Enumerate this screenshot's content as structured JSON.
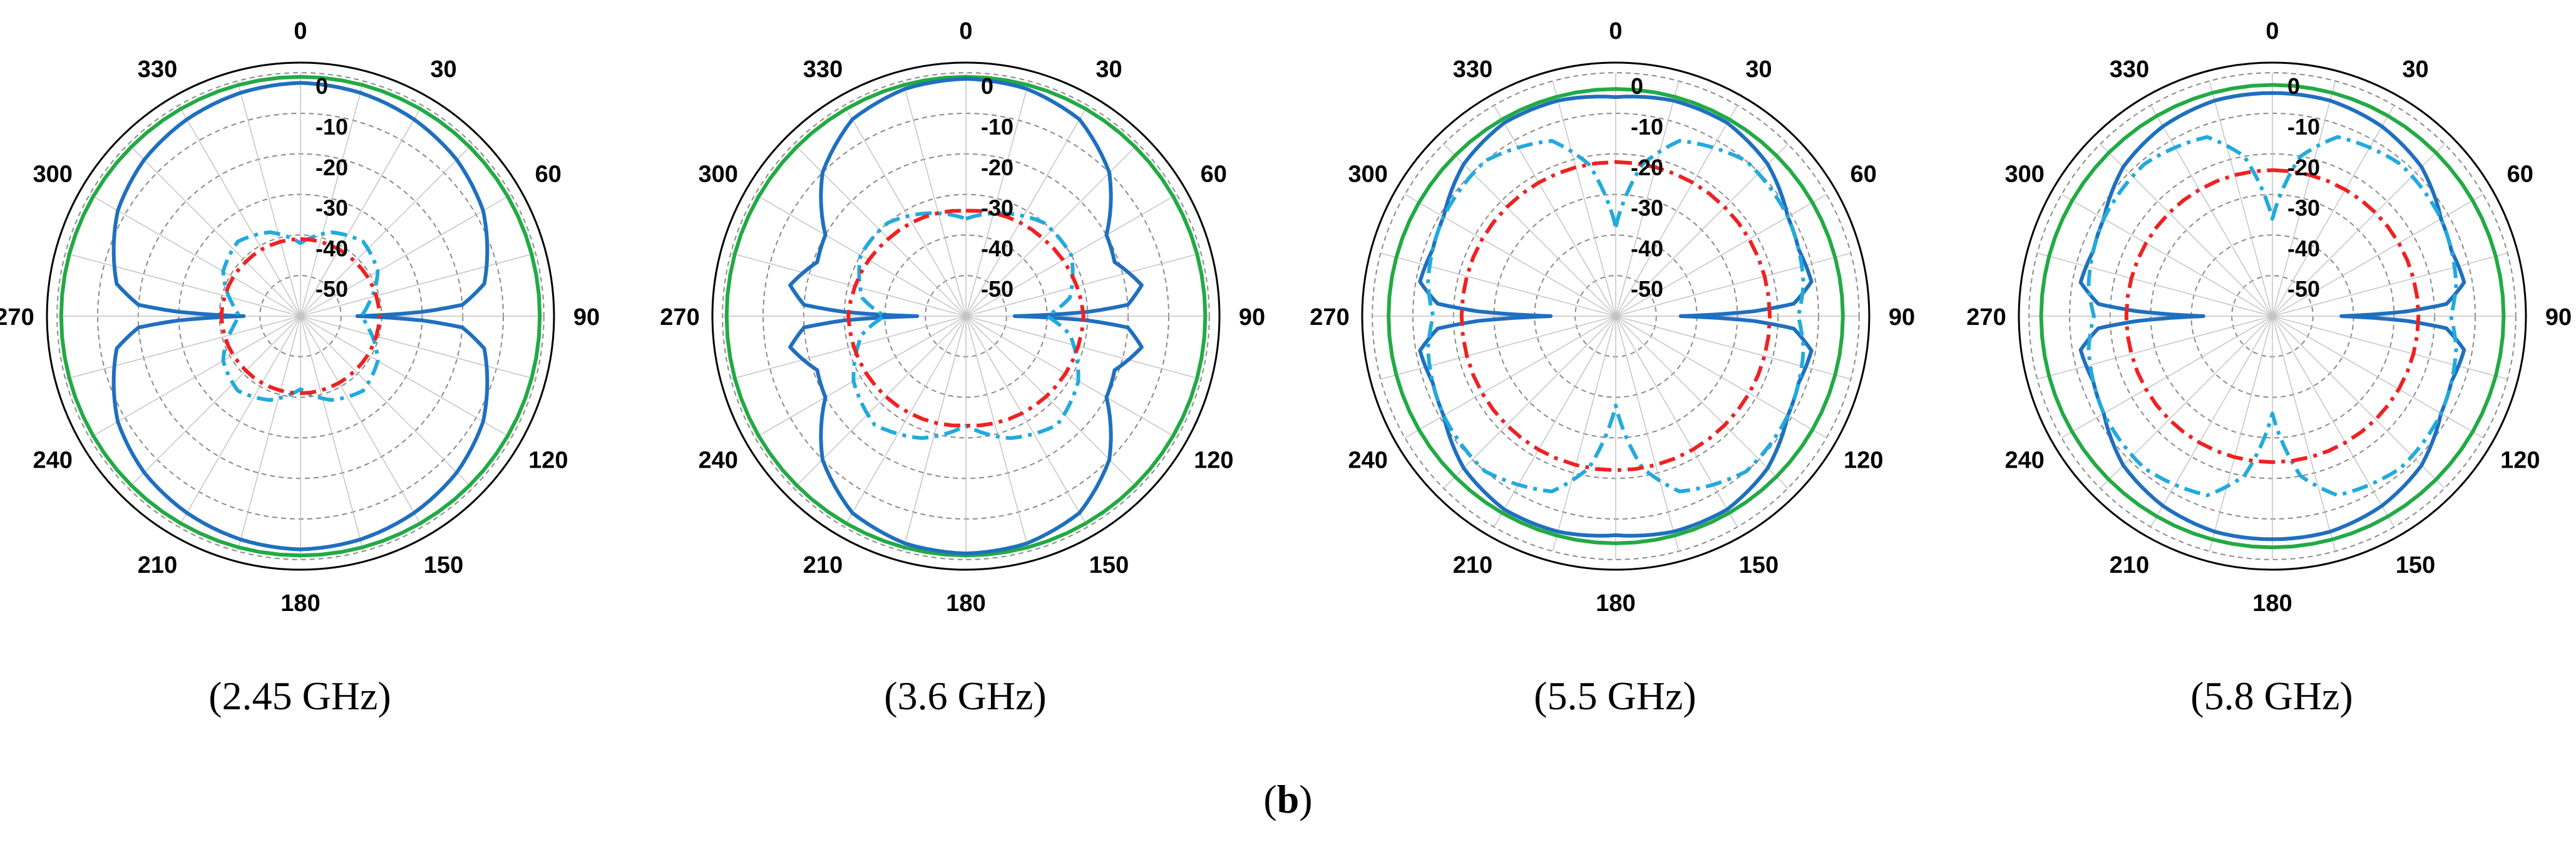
{
  "figure": {
    "panel_label_open": "(",
    "panel_label_letter": "b",
    "panel_label_close": ")"
  },
  "chart_data": [
    {
      "type": "polar",
      "title": "(2.45 GHz)",
      "angle_labels": [
        "0",
        "30",
        "60",
        "90",
        "120",
        "150",
        "180",
        "210",
        "240",
        "270",
        "300",
        "330"
      ],
      "r_tick_labels": [
        "0",
        "-10",
        "-20",
        "-30",
        "-40",
        "-50"
      ],
      "r_range": [
        -60,
        0
      ],
      "angle_direction": "clockwise, 0 at top",
      "legend": "none",
      "series": [
        {
          "name": "solid-green",
          "color": "#22aa44",
          "style": "solid",
          "angles": [
            0,
            30,
            60,
            90,
            120,
            150,
            180,
            210,
            240,
            270,
            300,
            330,
            360
          ],
          "values": [
            -1,
            -1,
            -1,
            -1,
            -1,
            -1,
            -1,
            -1,
            -1,
            -1,
            -1,
            -1,
            -1
          ]
        },
        {
          "name": "solid-blue",
          "color": "#1f6fbf",
          "style": "solid",
          "angles": [
            0,
            15,
            30,
            45,
            60,
            70,
            80,
            86,
            88,
            90,
            92,
            94,
            100,
            110,
            120,
            135,
            150,
            165,
            180,
            195,
            210,
            225,
            240,
            250,
            260,
            266,
            268,
            270,
            272,
            274,
            280,
            290,
            300,
            315,
            330,
            345,
            360
          ],
          "values": [
            -2.5,
            -3,
            -4,
            -5.5,
            -8,
            -11,
            -14,
            -20,
            -30,
            -46,
            -30,
            -20,
            -14,
            -11,
            -8,
            -5.5,
            -4,
            -3,
            -2.5,
            -3,
            -4,
            -5.5,
            -8,
            -11,
            -14,
            -20,
            -30,
            -46,
            -30,
            -20,
            -14,
            -11,
            -8,
            -5.5,
            -4,
            -3,
            -2.5
          ]
        },
        {
          "name": "dashdot-cyan",
          "color": "#22aadd",
          "style": "dashdot",
          "angles": [
            0,
            20,
            40,
            60,
            80,
            90,
            100,
            120,
            140,
            160,
            180,
            200,
            220,
            240,
            260,
            270,
            280,
            300,
            320,
            340,
            360
          ],
          "values": [
            -42,
            -38,
            -36,
            -38,
            -43,
            -45,
            -43,
            -38,
            -36,
            -38,
            -42,
            -38,
            -36,
            -38,
            -43,
            -45,
            -43,
            -38,
            -36,
            -38,
            -42
          ]
        },
        {
          "name": "dashdot-red",
          "color": "#ee2222",
          "style": "dashdot",
          "angles": [
            0,
            45,
            90,
            135,
            180,
            225,
            270,
            315,
            360
          ],
          "values": [
            -41,
            -41,
            -40.5,
            -41,
            -41,
            -41,
            -40.5,
            -41,
            -41
          ]
        }
      ]
    },
    {
      "type": "polar",
      "title": "(3.6 GHz)",
      "angle_labels": [
        "0",
        "30",
        "60",
        "90",
        "120",
        "150",
        "180",
        "210",
        "240",
        "270",
        "300",
        "330"
      ],
      "r_tick_labels": [
        "0",
        "-10",
        "-20",
        "-30",
        "-40",
        "-50"
      ],
      "r_range": [
        -60,
        0
      ],
      "angle_direction": "clockwise, 0 at top",
      "legend": "none",
      "series": [
        {
          "name": "solid-green",
          "color": "#22aa44",
          "style": "solid",
          "angles": [
            0,
            30,
            60,
            90,
            120,
            150,
            180,
            210,
            240,
            270,
            300,
            330,
            360
          ],
          "values": [
            -1,
            -1,
            -1,
            -1,
            -1,
            -1,
            -1,
            -1,
            -1,
            -1,
            -1,
            -1,
            -1
          ]
        },
        {
          "name": "solid-blue",
          "color": "#1f6fbf",
          "style": "solid",
          "angles": [
            0,
            15,
            30,
            45,
            60,
            70,
            80,
            86,
            88,
            90,
            92,
            94,
            100,
            110,
            120,
            135,
            150,
            165,
            180,
            195,
            210,
            225,
            240,
            250,
            260,
            266,
            268,
            270,
            272,
            274,
            280,
            290,
            300,
            315,
            330,
            345,
            360
          ],
          "values": [
            -1.5,
            -2,
            -4,
            -10,
            -20,
            -21,
            -16,
            -20,
            -30,
            -48,
            -30,
            -20,
            -16,
            -21,
            -20,
            -10,
            -4,
            -2,
            -1.5,
            -2,
            -4,
            -10,
            -20,
            -21,
            -16,
            -20,
            -30,
            -48,
            -30,
            -20,
            -16,
            -21,
            -20,
            -10,
            -4,
            -2,
            -1.5
          ]
        },
        {
          "name": "dashdot-cyan",
          "color": "#22aadd",
          "style": "dashdot",
          "angles": [
            0,
            20,
            40,
            60,
            80,
            90,
            100,
            120,
            140,
            160,
            180,
            200,
            220,
            240,
            260,
            270,
            280,
            300,
            320,
            340,
            360
          ],
          "values": [
            -36,
            -33,
            -30,
            -30,
            -34,
            -40,
            -34,
            -28,
            -25,
            -28,
            -33,
            -28,
            -25,
            -28,
            -34,
            -40,
            -34,
            -30,
            -30,
            -33,
            -36
          ]
        },
        {
          "name": "dashdot-red",
          "color": "#ee2222",
          "style": "dashdot",
          "angles": [
            0,
            45,
            90,
            135,
            180,
            225,
            270,
            315,
            360
          ],
          "values": [
            -34,
            -33,
            -31,
            -32,
            -33,
            -32,
            -31,
            -33,
            -34
          ]
        }
      ]
    },
    {
      "type": "polar",
      "title": "(5.5 GHz)",
      "angle_labels": [
        "0",
        "30",
        "60",
        "90",
        "120",
        "150",
        "180",
        "210",
        "240",
        "270",
        "300",
        "330"
      ],
      "r_tick_labels": [
        "0",
        "-10",
        "-20",
        "-30",
        "-40",
        "-50"
      ],
      "r_range": [
        -60,
        0
      ],
      "angle_direction": "clockwise, 0 at top",
      "legend": "none",
      "series": [
        {
          "name": "solid-green",
          "color": "#22aa44",
          "style": "solid",
          "angles": [
            0,
            30,
            60,
            90,
            120,
            150,
            180,
            210,
            240,
            270,
            300,
            330,
            360
          ],
          "values": [
            -4,
            -4,
            -4,
            -4,
            -4,
            -4,
            -4,
            -4,
            -4,
            -4,
            -4,
            -4,
            -4
          ]
        },
        {
          "name": "solid-blue",
          "color": "#1f6fbf",
          "style": "solid",
          "angles": [
            0,
            15,
            30,
            45,
            60,
            70,
            80,
            86,
            88,
            90,
            92,
            94,
            100,
            110,
            120,
            135,
            150,
            165,
            180,
            195,
            210,
            225,
            240,
            250,
            260,
            266,
            268,
            270,
            272,
            274,
            280,
            290,
            300,
            315,
            330,
            345,
            360
          ],
          "values": [
            -6,
            -5,
            -5,
            -7,
            -11,
            -12,
            -11,
            -16,
            -26,
            -44,
            -26,
            -16,
            -11,
            -12,
            -11,
            -7,
            -5,
            -5,
            -6,
            -5,
            -5,
            -7,
            -11,
            -12,
            -11,
            -16,
            -26,
            -44,
            -26,
            -16,
            -11,
            -12,
            -11,
            -7,
            -5,
            -5,
            -6
          ]
        },
        {
          "name": "dashdot-cyan",
          "color": "#22aadd",
          "style": "dashdot",
          "angles": [
            0,
            10,
            20,
            40,
            60,
            80,
            90,
            100,
            120,
            140,
            160,
            170,
            180,
            190,
            200,
            220,
            240,
            260,
            270,
            280,
            300,
            320,
            340,
            350,
            360
          ],
          "values": [
            -38,
            -22,
            -14,
            -10,
            -11,
            -13,
            -15,
            -13,
            -11,
            -10,
            -14,
            -22,
            -38,
            -22,
            -14,
            -10,
            -11,
            -13,
            -15,
            -13,
            -11,
            -10,
            -14,
            -22,
            -38
          ]
        },
        {
          "name": "dashdot-red",
          "color": "#ee2222",
          "style": "dashdot",
          "angles": [
            0,
            45,
            90,
            135,
            180,
            225,
            270,
            315,
            360
          ],
          "values": [
            -22,
            -22,
            -22,
            -22,
            -22,
            -22,
            -22,
            -22,
            -22
          ]
        }
      ]
    },
    {
      "type": "polar",
      "title": "(5.8 GHz)",
      "angle_labels": [
        "0",
        "30",
        "60",
        "90",
        "120",
        "150",
        "180",
        "210",
        "240",
        "270",
        "300",
        "330"
      ],
      "r_tick_labels": [
        "0",
        "-10",
        "-20",
        "-30",
        "-40",
        "-50"
      ],
      "r_range": [
        -60,
        0
      ],
      "angle_direction": "clockwise, 0 at top",
      "legend": "none",
      "series": [
        {
          "name": "solid-green",
          "color": "#22aa44",
          "style": "solid",
          "angles": [
            0,
            30,
            60,
            90,
            120,
            150,
            180,
            210,
            240,
            270,
            300,
            330,
            360
          ],
          "values": [
            -3,
            -3,
            -3,
            -3,
            -3,
            -3,
            -3,
            -3,
            -3,
            -3,
            -3,
            -3,
            -3
          ]
        },
        {
          "name": "solid-blue",
          "color": "#1f6fbf",
          "style": "solid",
          "angles": [
            0,
            15,
            30,
            45,
            60,
            70,
            80,
            86,
            88,
            90,
            92,
            94,
            100,
            110,
            120,
            135,
            150,
            165,
            180,
            195,
            210,
            225,
            240,
            250,
            260,
            266,
            268,
            270,
            272,
            274,
            280,
            290,
            300,
            315,
            330,
            345,
            360
          ],
          "values": [
            -5,
            -5,
            -6,
            -8,
            -12,
            -13,
            -12,
            -17,
            -27,
            -43,
            -27,
            -17,
            -12,
            -13,
            -12,
            -8,
            -6,
            -5,
            -5,
            -5,
            -6,
            -8,
            -12,
            -13,
            -12,
            -17,
            -27,
            -43,
            -27,
            -17,
            -12,
            -13,
            -12,
            -8,
            -6,
            -5,
            -5
          ]
        },
        {
          "name": "dashdot-cyan",
          "color": "#22aadd",
          "style": "dashdot",
          "angles": [
            0,
            10,
            20,
            40,
            60,
            80,
            90,
            100,
            120,
            140,
            160,
            170,
            180,
            190,
            200,
            220,
            240,
            260,
            270,
            280,
            300,
            320,
            340,
            350,
            360
          ],
          "values": [
            -36,
            -20,
            -13,
            -11,
            -12,
            -14,
            -16,
            -14,
            -12,
            -11,
            -13,
            -20,
            -36,
            -20,
            -13,
            -11,
            -12,
            -14,
            -16,
            -14,
            -12,
            -11,
            -13,
            -20,
            -36
          ]
        },
        {
          "name": "dashdot-red",
          "color": "#ee2222",
          "style": "dashdot",
          "angles": [
            0,
            45,
            90,
            135,
            180,
            225,
            270,
            315,
            360
          ],
          "values": [
            -24,
            -24,
            -24,
            -24,
            -24,
            -24,
            -24,
            -24,
            -24
          ]
        }
      ]
    }
  ]
}
